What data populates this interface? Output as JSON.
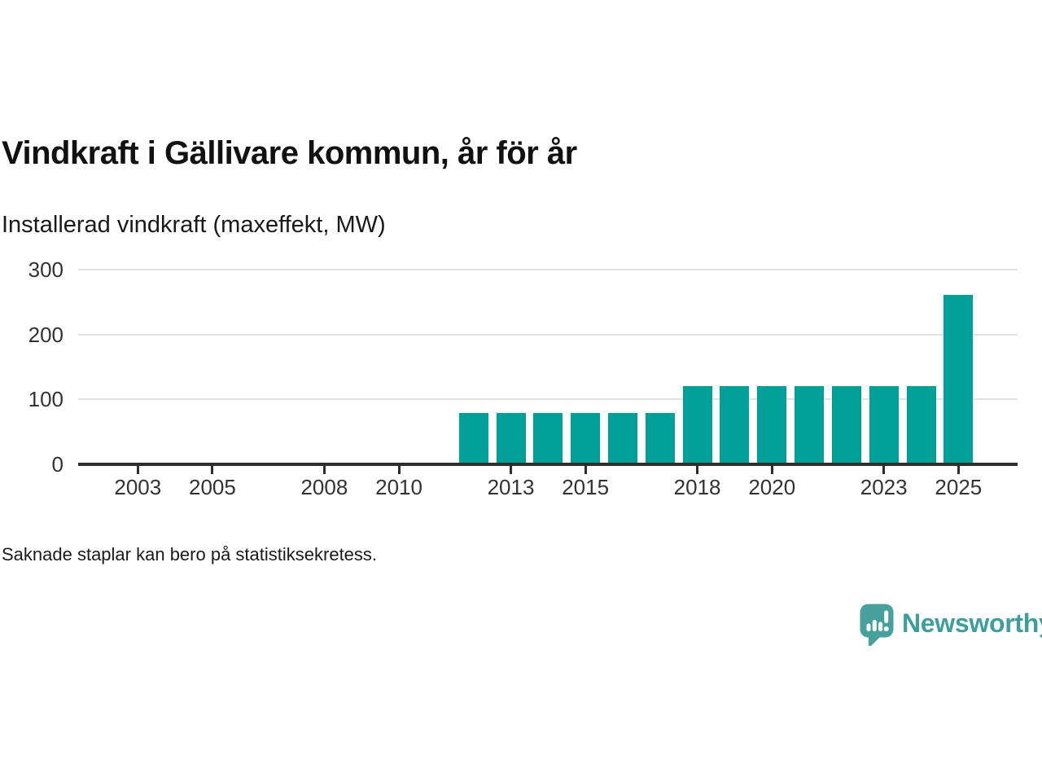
{
  "header": {
    "title": "Vindkraft i Gällivare kommun, år för år",
    "subtitle": "Installerad vindkraft (maxeffekt, MW)"
  },
  "chart_data": {
    "type": "bar",
    "title": "Vindkraft i Gällivare kommun, år för år",
    "ylabel": "Installerad vindkraft (maxeffekt, MW)",
    "x": [
      2012,
      2013,
      2014,
      2015,
      2016,
      2017,
      2018,
      2019,
      2020,
      2021,
      2022,
      2023,
      2024,
      2025
    ],
    "values": [
      79,
      79,
      79,
      79,
      79,
      79,
      121,
      121,
      121,
      121,
      121,
      121,
      121,
      261
    ],
    "missing_years_note": "No bars shown for 2002-2011",
    "xticks": [
      2003,
      2005,
      2008,
      2010,
      2013,
      2015,
      2018,
      2020,
      2023,
      2025
    ],
    "yticks": [
      0,
      100,
      200,
      300
    ],
    "ylim": [
      0,
      300
    ],
    "xlim": [
      2001.5,
      2026.5
    ],
    "grid": "horizontal",
    "legend": "none",
    "bar_color": "#00a099"
  },
  "footer": {
    "note": "Saknade staplar kan bero på statistiksekretess.",
    "brand": "Newsworthy"
  },
  "colors": {
    "bar": "#00a099",
    "axis": "#2e2e2e",
    "gridline": "#e2e2e2",
    "tick_label": "#333333",
    "title": "#111111",
    "brand_teal": "#3f9e9b",
    "background": "#ffffff"
  },
  "icons": {
    "logo": "newsworthy-speech-bubble-bar-chart-icon"
  }
}
